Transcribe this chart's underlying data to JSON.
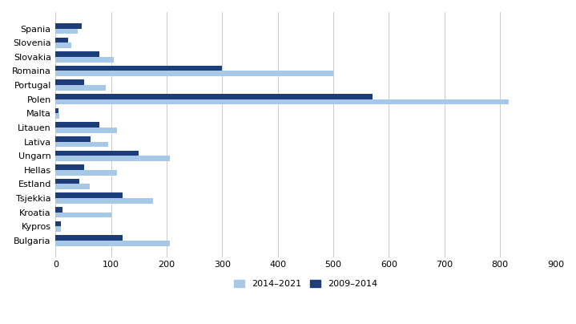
{
  "categories": [
    "Spania",
    "Slovenia",
    "Slovakia",
    "Romaina",
    "Portugal",
    "Polen",
    "Malta",
    "Litauen",
    "Lativa",
    "Ungarn",
    "Hellas",
    "Estland",
    "Tsjekkia",
    "Kroatia",
    "Kypros",
    "Bulgaria"
  ],
  "values_2014_2021": [
    40,
    28,
    105,
    500,
    90,
    815,
    7,
    110,
    95,
    205,
    110,
    62,
    175,
    100,
    10,
    205
  ],
  "values_2009_2014": [
    47,
    22,
    78,
    300,
    52,
    570,
    5,
    78,
    63,
    150,
    52,
    42,
    120,
    12,
    10,
    120
  ],
  "color_2014_2021": "#a8c8e8",
  "color_2009_2014": "#1c3d7a",
  "xlim": [
    0,
    900
  ],
  "xticks": [
    0,
    100,
    200,
    300,
    400,
    500,
    600,
    700,
    800,
    900
  ],
  "legend_labels": [
    "2014–2021",
    "2009–2014"
  ],
  "bar_height": 0.38,
  "figsize": [
    7.19,
    4.04
  ],
  "dpi": 100
}
